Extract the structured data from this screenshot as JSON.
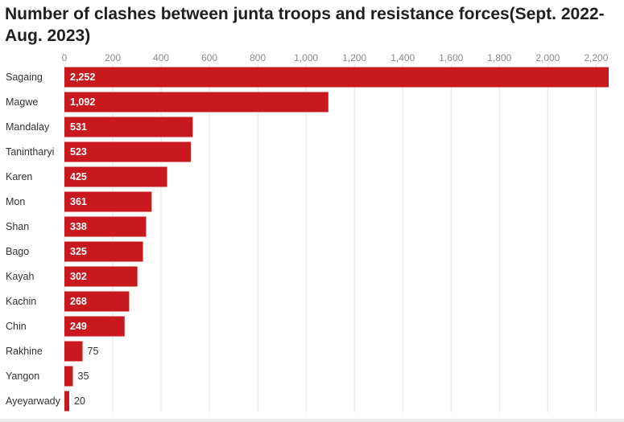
{
  "chart_data": {
    "type": "bar",
    "orientation": "horizontal",
    "title": "Number of clashes between junta troops and resistance forces(Sept. 2022-Aug. 2023)",
    "xlabel": "",
    "ylabel": "",
    "xlim": [
      0,
      2252
    ],
    "x_ticks": [
      0,
      200,
      400,
      600,
      800,
      1000,
      1200,
      1400,
      1600,
      1800,
      2000,
      2200
    ],
    "x_tick_labels": [
      "0",
      "200",
      "400",
      "600",
      "800",
      "1,000",
      "1,200",
      "1,400",
      "1,600",
      "1,800",
      "2,000",
      "2,200"
    ],
    "grid": true,
    "categories": [
      "Sagaing",
      "Magwe",
      "Mandalay",
      "Tanintharyi",
      "Karen",
      "Mon",
      "Shan",
      "Bago",
      "Kayah",
      "Kachin",
      "Chin",
      "Rakhine",
      "Yangon",
      "Ayeyarwady"
    ],
    "values": [
      2252,
      1092,
      531,
      523,
      425,
      361,
      338,
      325,
      302,
      268,
      249,
      75,
      35,
      20
    ],
    "value_labels": [
      "2,252",
      "1,092",
      "531",
      "523",
      "425",
      "361",
      "338",
      "325",
      "302",
      "268",
      "249",
      "75",
      "35",
      "20"
    ],
    "bar_color": "#c8191f",
    "grid_color": "#e3e3e3"
  }
}
